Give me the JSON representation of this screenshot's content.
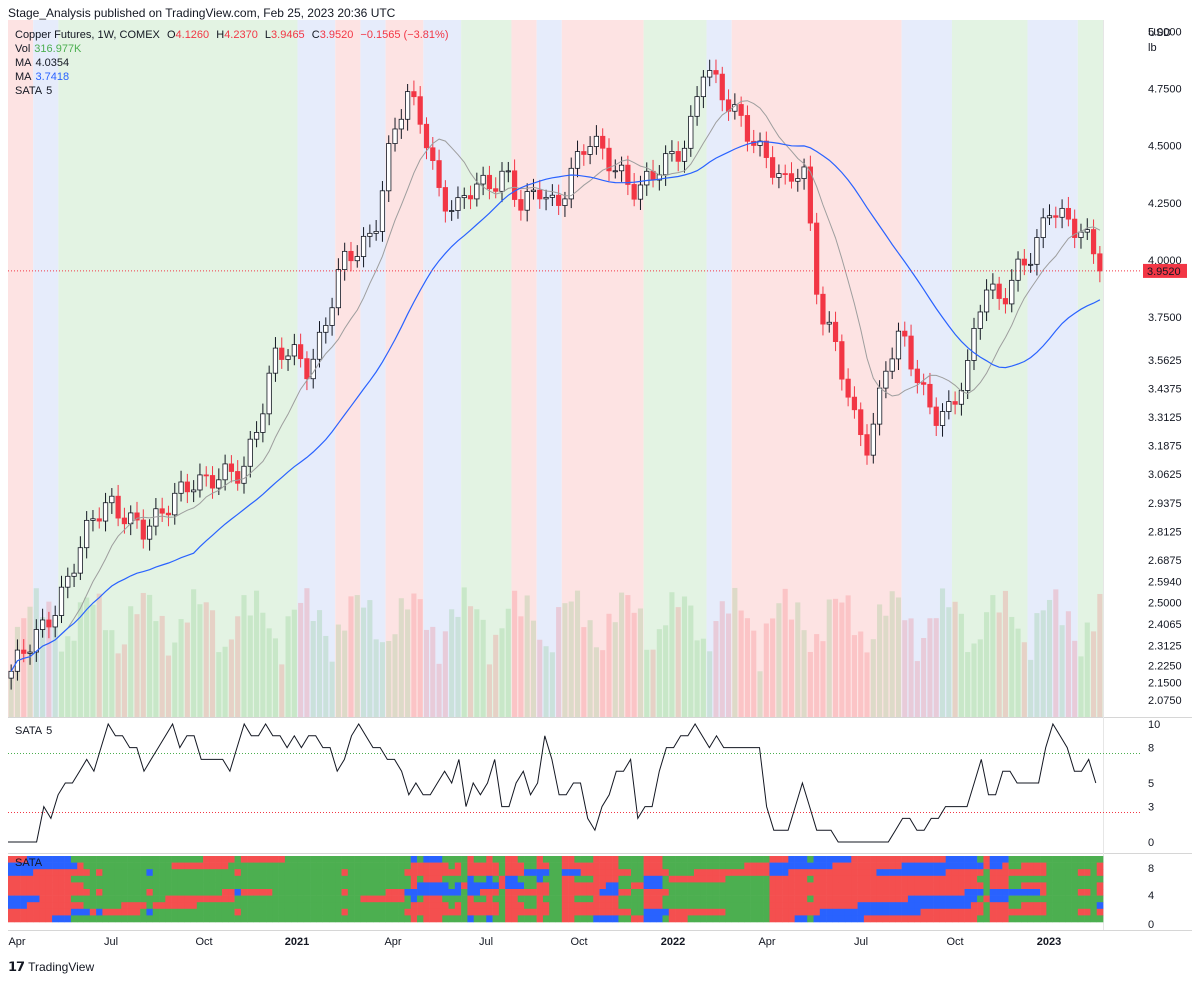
{
  "header": {
    "publisher": "Stage_Analysis published on TradingView.com, Feb 25, 2023 20:36 UTC"
  },
  "legend": {
    "symbol": "Copper Futures, 1W, COMEX",
    "open_label": "O",
    "open": "4.1260",
    "high_label": "H",
    "high": "4.2370",
    "low_label": "L",
    "low": "3.9465",
    "close_label": "C",
    "close": "3.9520",
    "change": "−0.1565 (−3.81%)",
    "vol_label": "Vol",
    "vol": "316.977K",
    "ma1_label": "MA",
    "ma1": "4.0354",
    "ma2_label": "MA",
    "ma2": "3.7418",
    "sata_label": "SATA",
    "sata": "5"
  },
  "colors": {
    "up": "#4caf50",
    "down": "#f23645",
    "ma_slow": "#2962ff",
    "ma_fast": "#9e9e9e",
    "stage_green": "#e3f3e3",
    "stage_blue": "#e6ecfb",
    "stage_red": "#fde3e3",
    "heat_green": "#4caf50",
    "heat_red": "#f44f4f",
    "heat_blue": "#2962ff"
  },
  "chart_data": [
    {
      "type": "candlestick",
      "currency": "USD",
      "unit": "lb",
      "ylim": [
        2.0,
        5.05
      ],
      "y_ticks": [
        "5.0000",
        "4.7500",
        "4.5000",
        "4.2500",
        "4.0000",
        "3.7500",
        "3.5625",
        "3.4375",
        "3.3125",
        "3.1875",
        "3.0625",
        "2.9375",
        "2.8125",
        "2.6875",
        "2.5940",
        "2.5000",
        "2.4065",
        "2.3125",
        "2.2250",
        "2.1500",
        "2.0750"
      ],
      "last_price": "3.9520",
      "x_labels": [
        "Apr",
        "Jul",
        "Oct",
        "2021",
        "Apr",
        "Jul",
        "Oct",
        "2022",
        "Apr",
        "Jul",
        "Oct",
        "2023"
      ],
      "close_path": [
        2.2,
        2.28,
        2.4,
        2.55,
        2.7,
        2.85,
        2.95,
        2.9,
        2.8,
        2.85,
        3.0,
        3.05,
        3.0,
        3.05,
        3.1,
        3.3,
        3.55,
        3.6,
        3.55,
        3.7,
        3.95,
        4.05,
        4.15,
        4.5,
        4.7,
        4.6,
        4.3,
        4.2,
        4.3,
        4.35,
        4.4,
        4.2,
        4.3,
        4.25,
        4.4,
        4.5,
        4.45,
        4.4,
        4.3,
        4.35,
        4.45,
        4.55,
        4.85,
        4.7,
        4.65,
        4.55,
        4.4,
        4.3,
        4.45,
        3.8,
        3.6,
        3.3,
        3.2,
        3.55,
        3.65,
        3.45,
        3.35,
        3.35,
        3.5,
        3.9,
        3.85,
        3.95,
        4.0,
        4.25,
        4.2,
        4.1,
        3.95
      ],
      "stage_bands": [
        {
          "start": 0,
          "end": 4,
          "color": "stage_red"
        },
        {
          "start": 4,
          "end": 8,
          "color": "stage_blue"
        },
        {
          "start": 8,
          "end": 46,
          "color": "stage_green"
        },
        {
          "start": 46,
          "end": 52,
          "color": "stage_blue"
        },
        {
          "start": 52,
          "end": 56,
          "color": "stage_red"
        },
        {
          "start": 56,
          "end": 60,
          "color": "stage_blue"
        },
        {
          "start": 60,
          "end": 66,
          "color": "stage_red"
        },
        {
          "start": 66,
          "end": 72,
          "color": "stage_blue"
        },
        {
          "start": 72,
          "end": 80,
          "color": "stage_green"
        },
        {
          "start": 80,
          "end": 84,
          "color": "stage_red"
        },
        {
          "start": 84,
          "end": 88,
          "color": "stage_blue"
        },
        {
          "start": 88,
          "end": 101,
          "color": "stage_red"
        },
        {
          "start": 101,
          "end": 111,
          "color": "stage_green"
        },
        {
          "start": 111,
          "end": 115,
          "color": "stage_blue"
        },
        {
          "start": 115,
          "end": 142,
          "color": "stage_red"
        },
        {
          "start": 142,
          "end": 150,
          "color": "stage_blue"
        },
        {
          "start": 150,
          "end": 162,
          "color": "stage_green"
        },
        {
          "start": 162,
          "end": 170,
          "color": "stage_blue"
        },
        {
          "start": 170,
          "end": 174,
          "color": "stage_green"
        }
      ]
    },
    {
      "type": "line",
      "name": "SATA",
      "param": "5",
      "ylim": [
        0,
        10
      ],
      "y_ticks": [
        "10",
        "8",
        "5",
        "3",
        "0"
      ],
      "values": [
        0,
        0,
        0,
        0,
        0,
        3,
        2,
        4,
        5,
        5,
        6,
        7,
        6,
        8,
        10,
        9,
        9,
        8,
        8,
        6,
        7,
        8,
        9,
        10,
        8,
        9,
        9,
        7,
        7,
        7,
        7,
        6,
        8,
        10,
        9,
        9,
        10,
        9,
        9,
        8,
        9,
        8,
        9,
        9,
        8,
        8,
        6,
        7,
        9,
        10,
        9,
        8,
        8,
        7,
        7,
        6,
        4,
        5,
        4,
        4,
        5,
        6,
        5,
        7,
        3,
        5,
        4,
        5,
        7,
        3,
        3,
        5,
        6,
        4,
        5,
        9,
        7,
        4,
        4,
        5,
        5,
        2,
        1,
        3,
        4,
        6,
        6,
        7,
        2,
        3,
        3,
        6,
        8,
        8,
        9,
        9,
        10,
        9,
        8,
        9,
        8,
        8,
        8,
        8,
        8,
        8,
        3,
        1,
        1,
        1,
        3,
        5,
        3,
        1,
        1,
        1,
        0,
        0,
        0,
        0,
        0,
        0,
        0,
        0,
        1,
        2,
        2,
        1,
        1,
        2,
        2,
        3,
        3,
        3,
        3,
        5,
        7,
        4,
        4,
        6,
        6,
        5,
        5,
        5,
        5,
        8,
        10,
        9,
        8,
        6,
        6,
        7,
        5
      ]
    }
  ]
}
